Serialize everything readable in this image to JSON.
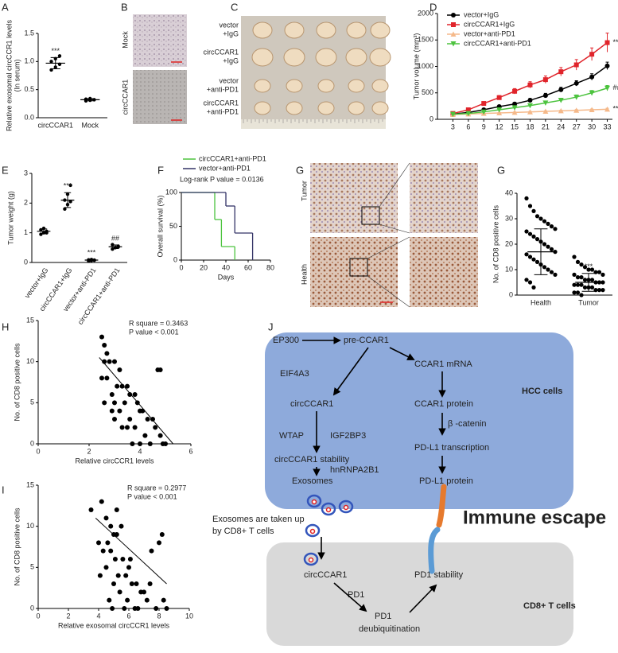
{
  "chart_data": [
    {
      "type": "dot",
      "panel": "A",
      "y_label": "Relative exosomal circCCR1 levels",
      "y_sublabel": "(In serum)",
      "categories": [
        "circCCAR1",
        "Mock"
      ],
      "color": "#000000",
      "points": [
        [
          0.85,
          0.9,
          0.95,
          1.0,
          1.05,
          1.1
        ],
        [
          0.3,
          0.31,
          0.32,
          0.33,
          0.34
        ]
      ],
      "means": [
        0.97,
        0.32
      ],
      "errors": [
        0.1,
        0.02
      ],
      "annotations": [
        "***",
        null
      ],
      "ylim": [
        0,
        1.5
      ],
      "yticks": [
        {
          "value": 0,
          "label": "0.0"
        },
        {
          "value": 0.5,
          "label": "0.5"
        },
        {
          "value": 1,
          "label": "1.0"
        },
        {
          "value": 1.5,
          "label": "1.5"
        }
      ]
    },
    {
      "type": "line",
      "panel": "D",
      "y_label": "Tumor volume (mm³)",
      "x": [
        3,
        6,
        9,
        12,
        15,
        18,
        21,
        24,
        27,
        30,
        33
      ],
      "xlim": [
        0,
        34
      ],
      "xticks": [
        3,
        6,
        9,
        12,
        15,
        18,
        21,
        24,
        27,
        30,
        33
      ],
      "ylim": [
        0,
        2000
      ],
      "yticks": [
        0,
        500,
        1000,
        1500,
        2000
      ],
      "series": [
        {
          "name": "vector+IgG",
          "color": "#000000",
          "marker": "circle",
          "values": [
            100,
            130,
            180,
            240,
            290,
            360,
            450,
            560,
            680,
            800,
            1010
          ],
          "errors": [
            10,
            15,
            20,
            25,
            30,
            35,
            40,
            45,
            50,
            60,
            70
          ]
        },
        {
          "name": "circCCAR1+IgG",
          "color": "#e0242b",
          "marker": "square",
          "values": [
            110,
            180,
            300,
            410,
            530,
            650,
            750,
            900,
            1030,
            1230,
            1450
          ],
          "errors": [
            15,
            20,
            30,
            40,
            50,
            60,
            70,
            80,
            100,
            120,
            180
          ],
          "end_label": "***"
        },
        {
          "name": "vector+anti-PD1",
          "color": "#f5b98a",
          "marker": "triangle",
          "values": [
            90,
            100,
            110,
            120,
            130,
            140,
            150,
            160,
            170,
            180,
            190
          ],
          "errors": [
            5,
            5,
            8,
            8,
            10,
            10,
            12,
            12,
            15,
            15,
            18
          ],
          "end_label": "***"
        },
        {
          "name": "circCCAR1+anti-PD1",
          "color": "#4cc33e",
          "marker": "triangle-down",
          "values": [
            95,
            110,
            140,
            180,
            220,
            260,
            310,
            360,
            420,
            500,
            590
          ],
          "errors": [
            8,
            10,
            12,
            15,
            20,
            25,
            30,
            35,
            40,
            45,
            50
          ],
          "end_label": "###"
        }
      ]
    },
    {
      "type": "dot",
      "panel": "E",
      "y_label": "Tumor weight (g)",
      "categories": [
        "vector+IgG",
        "circCCAR1+IgG",
        "vector+anti-PD1",
        "circCCAR1+anti-PD1"
      ],
      "color": "#000000",
      "points": [
        [
          0.95,
          1.0,
          1.05,
          1.1,
          1.15,
          1.0
        ],
        [
          1.8,
          1.95,
          2.05,
          2.1,
          2.3,
          2.6
        ],
        [
          0.05,
          0.07,
          0.08,
          0.09,
          0.1,
          0.08
        ],
        [
          0.45,
          0.5,
          0.55,
          0.6,
          0.5,
          0.52
        ]
      ],
      "means": [
        1.05,
        2.1,
        0.08,
        0.53
      ],
      "errors": [
        0.08,
        0.25,
        0.02,
        0.06
      ],
      "annotations": [
        null,
        "***",
        "***",
        "##"
      ],
      "ylim": [
        0,
        3
      ],
      "yticks": [
        0,
        1,
        2,
        3
      ]
    },
    {
      "type": "step",
      "panel": "F",
      "y_label": "Overall survival (%)",
      "x_label": "Days",
      "annotation": "Log-rank  P value = 0.0136",
      "annotation_color": "#e0242b",
      "xlim": [
        0,
        80
      ],
      "xticks": [
        0,
        20,
        40,
        60,
        80
      ],
      "ylim": [
        0,
        100
      ],
      "yticks": [
        0,
        50,
        100
      ],
      "series": [
        {
          "name": "circCCAR1+anti-PD1",
          "color": "#4cc33e",
          "x": [
            0,
            30,
            36,
            48
          ],
          "values": [
            100,
            60,
            20,
            0
          ]
        },
        {
          "name": "vector+anti-PD1",
          "color": "#333366",
          "x": [
            0,
            40,
            48,
            64
          ],
          "values": [
            100,
            80,
            40,
            0
          ]
        }
      ]
    },
    {
      "type": "dot",
      "panel": "G",
      "y_label": "No. of CD8 positive cells",
      "categories": [
        "Health",
        "Tumor"
      ],
      "color": "#000000",
      "points": [
        [
          38,
          35,
          33,
          31,
          30,
          29,
          28,
          27,
          26,
          25,
          24,
          23,
          22,
          21,
          20,
          19,
          18,
          17,
          16,
          15,
          14,
          13,
          12,
          11,
          10,
          9,
          8,
          6,
          5,
          3
        ],
        [
          15,
          13,
          12,
          11,
          10,
          10,
          9,
          9,
          8,
          8,
          7,
          7,
          6,
          6,
          6,
          5,
          5,
          5,
          4,
          4,
          4,
          3,
          3,
          3,
          2,
          2,
          2,
          1,
          1,
          0
        ]
      ],
      "means": [
        17,
        5
      ],
      "errors": [
        9,
        3.5
      ],
      "annotations": [
        null,
        "***"
      ],
      "ylim": [
        0,
        40
      ],
      "yticks": [
        0,
        10,
        20,
        30,
        40
      ]
    },
    {
      "type": "scatter",
      "panel": "H",
      "x_label": "Relative circCCR1 levels",
      "y_label": "No. of CD8 positive cells",
      "annotations": [
        "R square = 0.3463",
        "P value < 0.001"
      ],
      "color": "#000000",
      "x": [
        2.5,
        2.6,
        2.7,
        2.6,
        2.8,
        2.5,
        3.0,
        3.2,
        2.7,
        3.1,
        3.3,
        2.9,
        3.5,
        3.6,
        3.0,
        3.4,
        3.8,
        3.2,
        3.9,
        4.0,
        3.6,
        4.1,
        4.3,
        3.5,
        4.5,
        3.8,
        4.6,
        4.8,
        4.2,
        4.0,
        5.0,
        4.4,
        2.6,
        3.0,
        3.7,
        4.7,
        4.8,
        4.9,
        3.3,
        2.9
      ],
      "y": [
        13,
        12,
        11,
        10,
        10,
        8,
        10,
        9,
        8,
        7,
        7,
        6,
        7,
        6,
        5,
        5,
        6,
        4,
        5,
        4,
        3,
        4,
        3,
        2,
        3,
        2,
        2,
        1,
        1,
        0,
        0,
        0,
        5,
        3,
        0,
        9,
        9,
        0,
        2,
        4
      ],
      "fit_x": [
        2.4,
        5.3
      ],
      "fit_y": [
        10.5,
        0
      ],
      "xlim": [
        0,
        6
      ],
      "xticks": [
        0,
        2,
        4,
        6
      ],
      "ylim": [
        0,
        15
      ],
      "yticks": [
        0,
        5,
        10,
        15
      ]
    },
    {
      "type": "scatter",
      "panel": "I",
      "x_label": "Relative exosomal circCCR1 levels",
      "y_label": "No. of CD8 positive cells",
      "annotations": [
        "R square = 0.2977",
        "P value < 0.001"
      ],
      "color": "#000000",
      "x": [
        3.5,
        4.2,
        4.5,
        4.8,
        5.0,
        4.6,
        4.0,
        5.2,
        5.5,
        4.3,
        4.8,
        5.1,
        5.6,
        6.0,
        4.5,
        5.3,
        5.8,
        6.2,
        4.1,
        5.0,
        6.5,
        5.4,
        6.8,
        7.0,
        4.7,
        5.9,
        7.2,
        6.4,
        8.0,
        7.5,
        8.2,
        8.5,
        7.8,
        6.6,
        5.7,
        4.9,
        7.4,
        8.3,
        6.1,
        5.2
      ],
      "y": [
        12,
        13,
        11,
        10,
        9,
        8,
        8,
        12,
        10,
        7,
        7,
        6,
        6,
        5,
        5,
        4,
        4,
        3,
        4,
        3,
        3,
        2,
        2,
        2,
        1,
        1,
        1,
        0,
        8,
        7,
        9,
        0,
        0,
        0,
        0,
        0,
        3,
        1,
        6,
        9
      ],
      "fit_x": [
        3.8,
        8.5
      ],
      "fit_y": [
        11,
        3
      ],
      "xlim": [
        0,
        10
      ],
      "xticks": [
        0,
        2,
        4,
        6,
        8,
        10
      ],
      "ylim": [
        0,
        15
      ],
      "yticks": [
        0,
        5,
        10,
        15
      ]
    }
  ],
  "photos": [
    {
      "panel": "B",
      "labels": [
        "Mock",
        "circCCAR1"
      ]
    },
    {
      "panel": "C",
      "labels": [
        [
          "vector",
          "+IgG"
        ],
        [
          "circCCAR1",
          "+IgG"
        ],
        [
          "vector",
          "+anti-PD1"
        ],
        [
          "circCCAR1",
          "+anti-PD1"
        ]
      ]
    },
    {
      "panel": "G",
      "labels": [
        "Tumor",
        "Health"
      ]
    }
  ],
  "diagram": {
    "panel": "J",
    "nodes": [
      "EP300",
      "pre-CCAR1",
      "EIF4A3",
      "CCAR1 mRNA",
      "circCCAR1",
      "CCAR1 protein",
      "WTAP",
      "IGF2BP3",
      "β  -catenin",
      "circCCAR1 stability",
      "PD-L1 transcription",
      "hnRNPA2B1",
      "Exosomes",
      "PD-L1 protein",
      "circCCAR1",
      "PD1 stability",
      "PD1",
      "PD1",
      "deubiquitination"
    ],
    "regions": [
      "HCC cells",
      "CD8+ T cells"
    ],
    "callout": [
      "Exosomes are taken up",
      "by CD8+ T cells"
    ],
    "title": "Immune escape"
  }
}
